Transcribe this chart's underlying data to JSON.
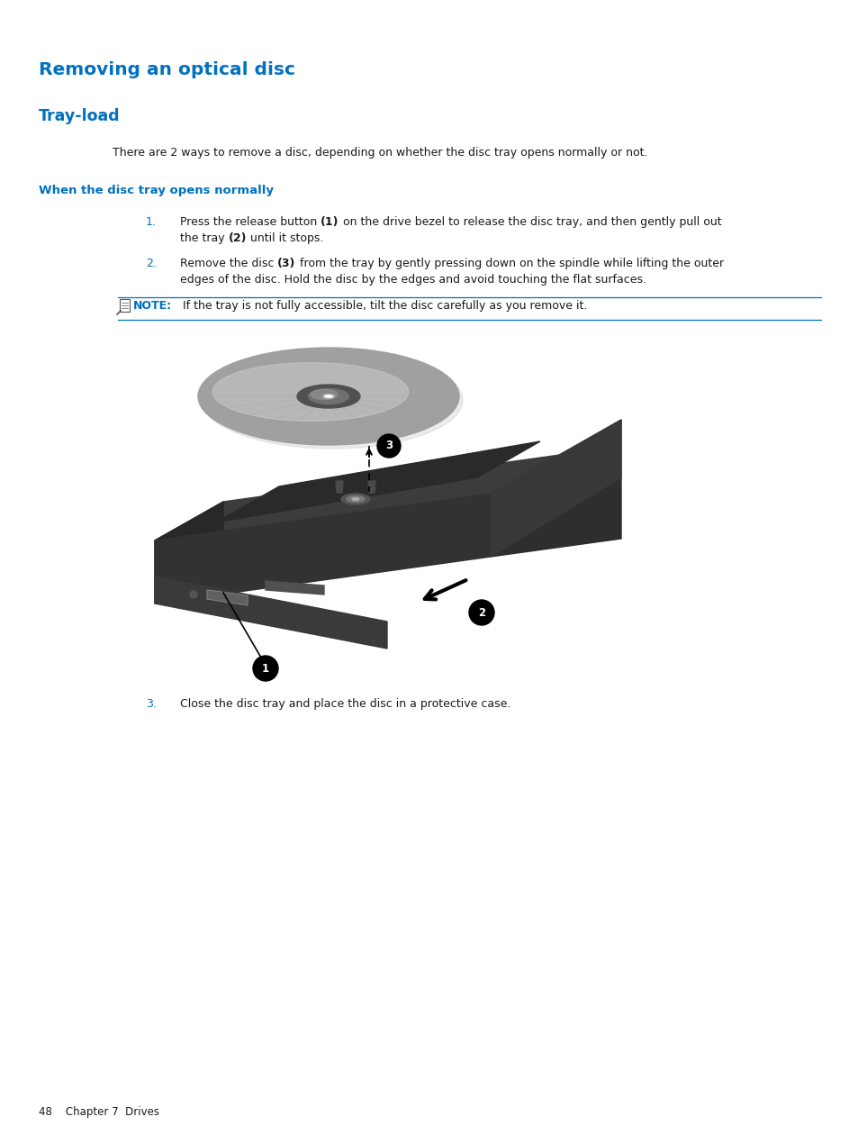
{
  "title": "Removing an optical disc",
  "subtitle": "Tray-load",
  "subtitle2": "When the disc tray opens normally",
  "intro_text": "There are 2 ways to remove a disc, depending on whether the disc tray opens normally or not.",
  "item1_num": "1.",
  "item1_line1a": "Press the release button ",
  "item1_line1b": "(1)",
  "item1_line1c": " on the drive bezel to release the disc tray, and then gently pull out",
  "item1_line2a": "the tray ",
  "item1_line2b": "(2)",
  "item1_line2c": " until it stops.",
  "item2_num": "2.",
  "item2_line1a": "Remove the disc ",
  "item2_line1b": "(3)",
  "item2_line1c": " from the tray by gently pressing down on the spindle while lifting the outer",
  "item2_line2": "edges of the disc. Hold the disc by the edges and avoid touching the flat surfaces.",
  "note_label": "NOTE:",
  "note_text": "  If the tray is not fully accessible, tilt the disc carefully as you remove it.",
  "step3_num": "3.",
  "step3_text": "Close the disc tray and place the disc in a protective case.",
  "footer": "48    Chapter 7  Drives",
  "title_color": "#0070C0",
  "subtitle_color": "#0070C0",
  "subtitle2_color": "#0070C0",
  "note_label_color": "#0070C0",
  "body_color": "#1a1a1a",
  "num_color": "#0070C0",
  "bg_color": "#ffffff"
}
